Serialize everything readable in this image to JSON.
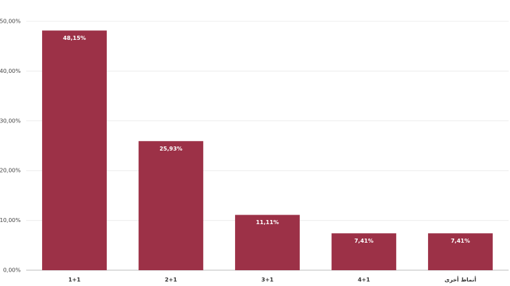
{
  "chart_data": {
    "type": "bar",
    "categories": [
      "1+1",
      "2+1",
      "3+1",
      "4+1",
      "أنماط أخرى"
    ],
    "values": [
      48.15,
      25.93,
      11.11,
      7.41,
      7.41
    ],
    "value_labels": [
      "48,15%",
      "25,93%",
      "11,11%",
      "7,41%",
      "7,41%"
    ],
    "color": "#9c3147",
    "ylim": [
      0,
      50
    ],
    "yticks": [
      {
        "value": 0,
        "label": "0,00%"
      },
      {
        "value": 10,
        "label": "10,00%"
      },
      {
        "value": 20,
        "label": "20,00%"
      },
      {
        "value": 30,
        "label": "30,00%"
      },
      {
        "value": 40,
        "label": "40,00%"
      },
      {
        "value": 50,
        "label": "50,00%"
      }
    ],
    "grid": true
  }
}
